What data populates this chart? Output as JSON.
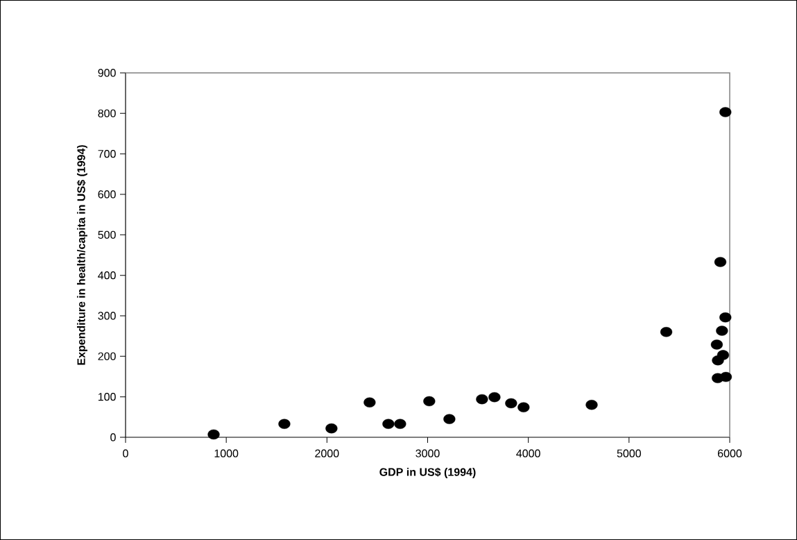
{
  "chart_data": {
    "type": "scatter",
    "xlabel": "GDP in US$ (1994)",
    "ylabel": "Expenditure in health/capita  in US$ (1994)",
    "x": [
      875,
      1577,
      2045,
      2424,
      2610,
      2727,
      3016,
      3216,
      3540,
      3664,
      3829,
      3953,
      4629,
      5370,
      5907,
      5957,
      5957,
      5923,
      5872,
      5934,
      5883,
      5881,
      5962
    ],
    "values": [
      7,
      33,
      22,
      86,
      33,
      33,
      89,
      45,
      94,
      99,
      84,
      74,
      80,
      260,
      433,
      803,
      296,
      263,
      229,
      203,
      190,
      146,
      149
    ],
    "color": "#000000",
    "marker": "circle",
    "xlim": [
      0,
      6000
    ],
    "ylim": [
      0,
      900
    ],
    "xticks": [
      0,
      1000,
      2000,
      3000,
      4000,
      5000,
      6000
    ],
    "yticks": [
      0,
      100,
      200,
      300,
      400,
      500,
      600,
      700,
      800,
      900
    ],
    "grid": false
  }
}
